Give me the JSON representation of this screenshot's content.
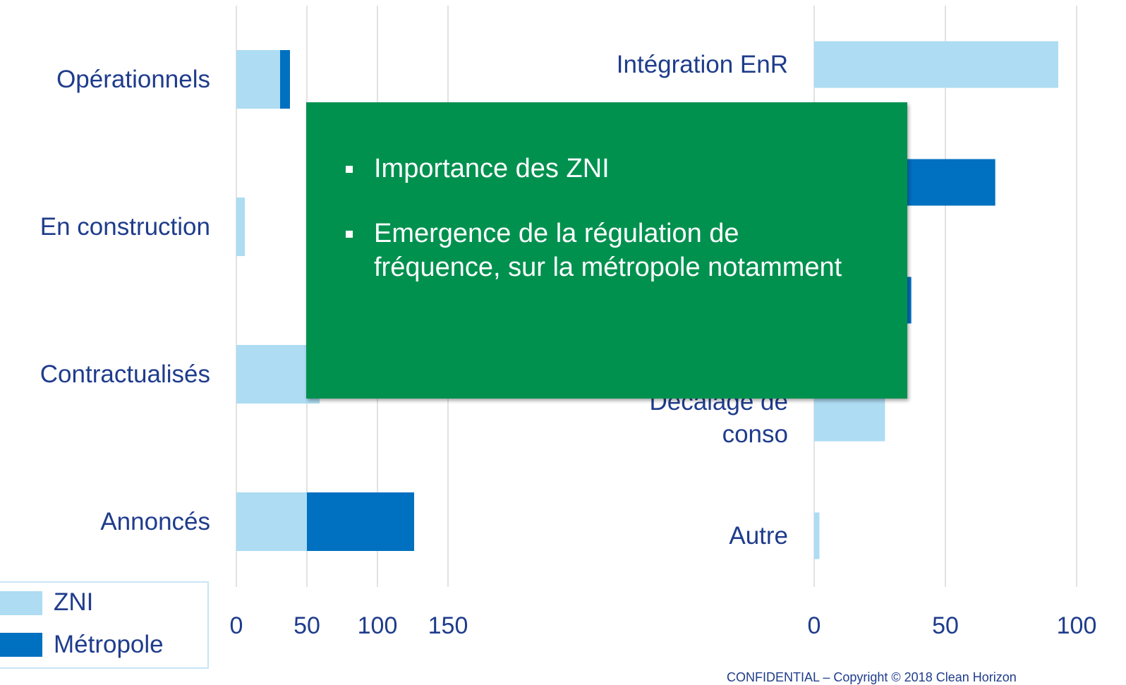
{
  "chart_data": [
    {
      "type": "stacked-bar-horizontal",
      "categories": [
        "Opérationnels",
        "En construction",
        "Contractualisés",
        "Annoncés"
      ],
      "series": [
        {
          "name": "ZNI",
          "color": "#addcf3",
          "values": [
            31,
            6,
            59,
            50
          ]
        },
        {
          "name": "Métropole",
          "color": "#0070c0",
          "values": [
            7,
            0,
            0,
            76
          ]
        }
      ],
      "xlim": [
        0,
        150
      ],
      "xticks": [
        0,
        50,
        100,
        150
      ],
      "grid": true
    },
    {
      "type": "stacked-bar-horizontal",
      "categories": [
        "Intégration EnR",
        null,
        null,
        "Décalage de conso",
        "Autre"
      ],
      "series": [
        {
          "color": "#addcf3",
          "values": [
            93,
            0,
            0,
            27,
            2
          ]
        },
        {
          "color": "#0070c0",
          "values": [
            0,
            69,
            37,
            0,
            0
          ]
        }
      ],
      "xlim": [
        0,
        100
      ],
      "xticks": [
        0,
        50,
        100
      ],
      "grid": true
    }
  ],
  "callout": {
    "bullets": [
      "Importance des ZNI",
      "Emergence de la régulation de fréquence, sur la métropole notamment"
    ]
  },
  "footer": "CONFIDENTIAL – Copyright © 2018 Clean Horizon"
}
